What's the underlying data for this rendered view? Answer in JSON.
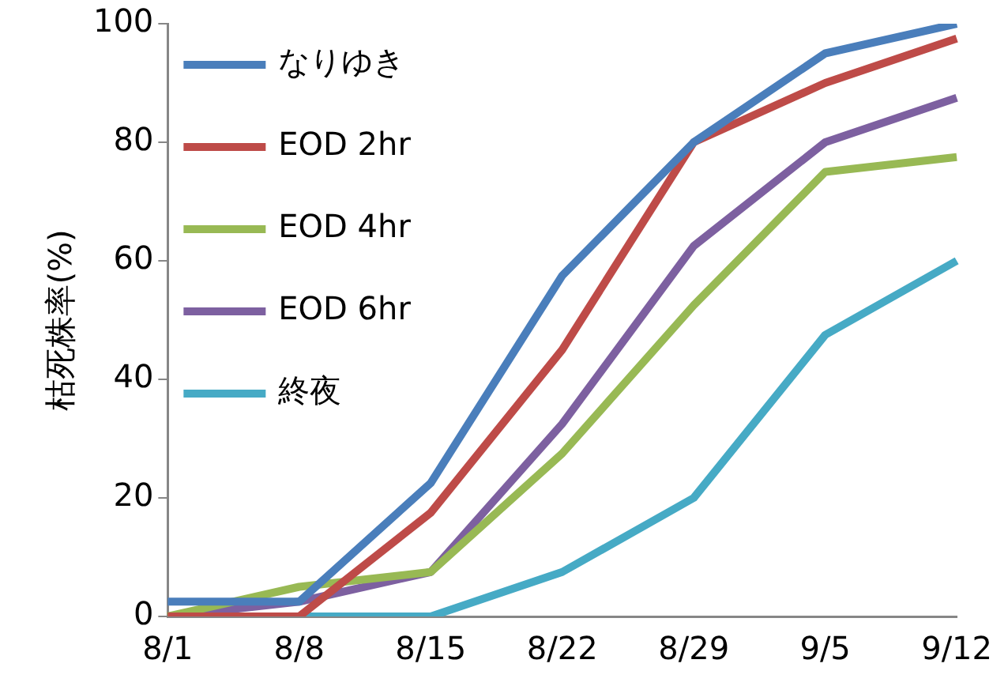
{
  "chart_data": {
    "type": "line",
    "ylabel": "枯死株率(%)",
    "categories": [
      "8/1",
      "8/8",
      "8/15",
      "8/22",
      "8/29",
      "9/5",
      "9/12"
    ],
    "ylim": [
      0,
      100
    ],
    "yticks": [
      0,
      20,
      40,
      60,
      80,
      100
    ],
    "grid": false,
    "legend": "top left",
    "marker": "none",
    "line_style": "solid",
    "series": [
      {
        "name": "なりゆき",
        "color": "#4a7ebb",
        "values": [
          2.5,
          2.5,
          22.5,
          57.5,
          80,
          95,
          100
        ]
      },
      {
        "name": "EOD 2hr",
        "color": "#be4b48",
        "values": [
          0,
          0,
          17.5,
          45,
          80,
          90,
          97.5
        ]
      },
      {
        "name": "EOD 4hr",
        "color": "#98b954",
        "values": [
          0,
          5,
          7.5,
          27.5,
          52.5,
          75,
          77.5
        ]
      },
      {
        "name": "EOD 6hr",
        "color": "#7d60a0",
        "values": [
          0,
          2.5,
          7.5,
          32.5,
          62.5,
          80,
          87.5
        ]
      },
      {
        "name": "終夜",
        "color": "#46aac5",
        "values": [
          0,
          0,
          0,
          7.5,
          20,
          47.5,
          60
        ]
      }
    ]
  }
}
